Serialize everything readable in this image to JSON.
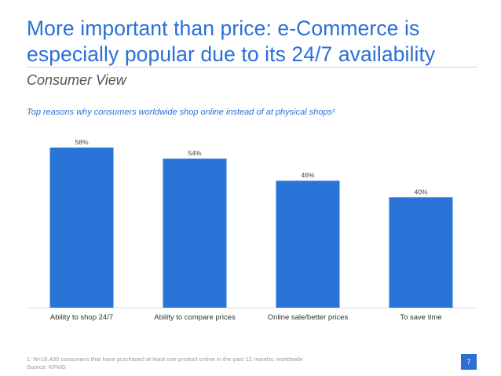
{
  "slide": {
    "title": "More important than price: e-Commerce is especially popular due to its 24/7 availability",
    "subtitle": "Consumer View",
    "chart_title": "Top reasons why consumers worldwide shop online instead of at physical shops¹",
    "footnote_line1": "1: N=18,430 consumers that have purchased at least one product online in the past 12 months; worldwide",
    "footnote_line2": "Source: KPMG",
    "page_number": "7",
    "accent_color": "#2b6fd6",
    "bar_color": "#2a74d8"
  },
  "chart_data": {
    "type": "bar",
    "title": "Top reasons why consumers worldwide shop online instead of at physical shops¹",
    "xlabel": "",
    "ylabel": "",
    "categories": [
      "Ability to shop 24/7",
      "Ability to compare prices",
      "Online sale/better prices",
      "To save time"
    ],
    "values": [
      58,
      54,
      46,
      40
    ],
    "value_labels": [
      "58%",
      "54%",
      "46%",
      "40%"
    ],
    "ylim": [
      0,
      58
    ],
    "grid": false,
    "legend": "none"
  }
}
